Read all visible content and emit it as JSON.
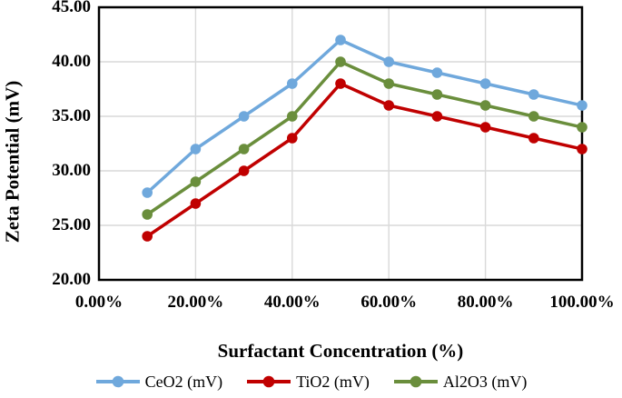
{
  "chart": {
    "y_axis_title": "Zeta Potential (mV)",
    "x_axis_title": "Surfactant Concentration (%)",
    "y_ticks": [
      "45.00",
      "40.00",
      "35.00",
      "30.00",
      "25.00",
      "20.00"
    ],
    "x_ticks": [
      "0.00%",
      "20.00%",
      "40.00%",
      "60.00%",
      "80.00%",
      "100.00%"
    ],
    "legend": [
      {
        "label": "CeO2 (mV)",
        "color": "#6FA8DC",
        "marker": "circle-line-icon"
      },
      {
        "label": "TiO2 (mV)",
        "color": "#C00000",
        "marker": "circle-line-icon"
      },
      {
        "label": "Al2O3 (mV)",
        "color": "#6A8E3C",
        "marker": "circle-line-icon"
      }
    ]
  },
  "chart_data": {
    "type": "line",
    "title": "",
    "xlabel": "Surfactant Concentration (%)",
    "ylabel": "Zeta Potential (mV)",
    "x": [
      10,
      20,
      30,
      40,
      50,
      60,
      70,
      80,
      90,
      100
    ],
    "x_unit": "%",
    "series": [
      {
        "name": "CeO2 (mV)",
        "color": "#6FA8DC",
        "values": [
          28,
          32,
          35,
          38,
          42,
          40,
          39,
          38,
          37,
          36
        ]
      },
      {
        "name": "TiO2 (mV)",
        "color": "#C00000",
        "values": [
          24,
          27,
          30,
          33,
          38,
          36,
          35,
          34,
          33,
          32
        ]
      },
      {
        "name": "Al2O3 (mV)",
        "color": "#6A8E3C",
        "values": [
          26,
          29,
          32,
          35,
          40,
          38,
          37,
          36,
          35,
          34
        ]
      }
    ],
    "xlim": [
      0,
      100
    ],
    "ylim": [
      20,
      45
    ],
    "y_tick_step": 5,
    "x_gridline_step": 20,
    "grid": true,
    "legend_position": "bottom"
  },
  "colors": {
    "gridline": "#D9D9D9",
    "plot_border": "#000000",
    "background": "#FFFFFF",
    "text": "#000000"
  }
}
